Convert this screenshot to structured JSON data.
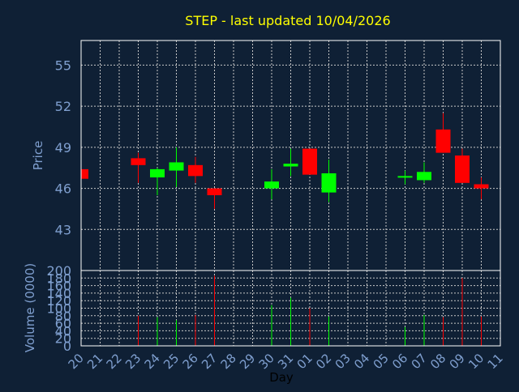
{
  "colors": {
    "background": "#0f2035",
    "title": "#ffff00",
    "axis_text": "#7f9fcf",
    "grid": "#c8c8c8",
    "frame": "#ffffff",
    "up": "#00ff00",
    "down": "#ff0000",
    "xlabel": "#000000"
  },
  "chart_data": {
    "type": "candlestick",
    "title": "STEP - last updated 10/04/2026",
    "ylabel": "Price",
    "volume_ylabel": "Volume (0000)",
    "xlabel": "Day",
    "grid": true,
    "ylim": [
      40.0,
      56.8
    ],
    "yticks": [
      43,
      46,
      49,
      52,
      55
    ],
    "volume_ylim": [
      0,
      200
    ],
    "volume_yticks": [
      0,
      20,
      40,
      60,
      80,
      100,
      120,
      140,
      160,
      180,
      200
    ],
    "categories": [
      "20",
      "21",
      "22",
      "23",
      "24",
      "25",
      "26",
      "27",
      "28",
      "29",
      "30",
      "31",
      "01",
      "02",
      "03",
      "04",
      "05",
      "06",
      "07",
      "08",
      "09",
      "10",
      "11"
    ],
    "candles": [
      {
        "day": "20",
        "open": 47.4,
        "high": 47.4,
        "low": 46.7,
        "close": 46.7,
        "volume": 0
      },
      {
        "day": "23",
        "open": 48.2,
        "high": 48.6,
        "low": 46.4,
        "close": 47.7,
        "volume": 80
      },
      {
        "day": "24",
        "open": 46.8,
        "high": 47.5,
        "low": 45.5,
        "close": 47.4,
        "volume": 76
      },
      {
        "day": "25",
        "open": 47.3,
        "high": 49.0,
        "low": 46.1,
        "close": 47.9,
        "volume": 68
      },
      {
        "day": "26",
        "open": 47.7,
        "high": 48.3,
        "low": 46.4,
        "close": 46.9,
        "volume": 82
      },
      {
        "day": "27",
        "open": 46.0,
        "high": 46.0,
        "low": 44.5,
        "close": 45.5,
        "volume": 186
      },
      {
        "day": "30",
        "open": 46.0,
        "high": 47.4,
        "low": 45.2,
        "close": 46.5,
        "volume": 108
      },
      {
        "day": "31",
        "open": 47.6,
        "high": 48.9,
        "low": 46.9,
        "close": 47.8,
        "volume": 128
      },
      {
        "day": "01",
        "open": 48.9,
        "high": 48.9,
        "low": 47.1,
        "close": 47.0,
        "volume": 100
      },
      {
        "day": "02",
        "open": 45.7,
        "high": 48.1,
        "low": 45.0,
        "close": 47.1,
        "volume": 78
      },
      {
        "day": "06",
        "open": 46.8,
        "high": 47.3,
        "low": 46.3,
        "close": 46.9,
        "volume": 50
      },
      {
        "day": "07",
        "open": 46.6,
        "high": 47.9,
        "low": 46.4,
        "close": 47.2,
        "volume": 82
      },
      {
        "day": "08",
        "open": 50.3,
        "high": 51.5,
        "low": 48.6,
        "close": 48.6,
        "volume": 76
      },
      {
        "day": "09",
        "open": 48.4,
        "high": 48.9,
        "low": 46.4,
        "close": 46.4,
        "volume": 180
      },
      {
        "day": "10",
        "open": 46.3,
        "high": 46.8,
        "low": 45.2,
        "close": 46.0,
        "volume": 78
      }
    ]
  }
}
